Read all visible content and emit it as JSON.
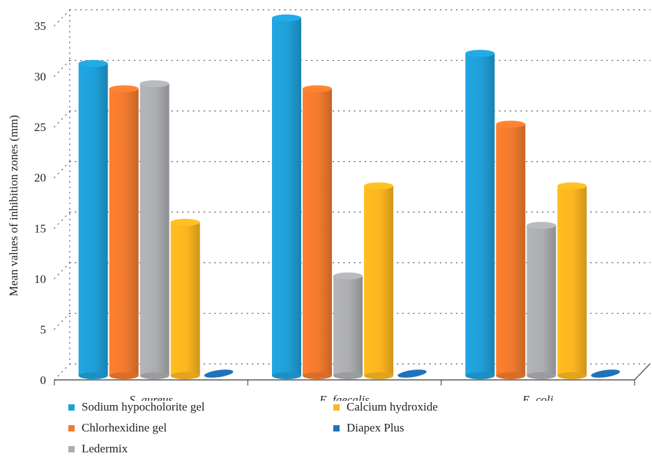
{
  "chart_data": {
    "type": "bar",
    "categories": [
      "S. aureus",
      "E. faecalis",
      "E. coli"
    ],
    "series": [
      {
        "name": "Sodium hypocholorite gel",
        "color": "#1f9fd8",
        "values": [
          31,
          35.5,
          32
        ]
      },
      {
        "name": "Chlorhexidine gel",
        "color": "#f27a2e",
        "values": [
          28.5,
          28.5,
          25
        ]
      },
      {
        "name": "Ledermix",
        "color": "#acadb1",
        "values": [
          29,
          10,
          15
        ]
      },
      {
        "name": "Calcium hydroxide",
        "color": "#fcb51f",
        "values": [
          15.3,
          18.9,
          18.9
        ]
      },
      {
        "name": "Diapex Plus",
        "color": "#2072bb",
        "values": [
          0,
          0,
          0
        ]
      }
    ],
    "ylabel": "Mean values of inhibition zones (mm)",
    "ylim": [
      0,
      35
    ],
    "yticks": [
      "0",
      "5",
      "10",
      "15",
      "20",
      "25",
      "30",
      "35"
    ],
    "grid": true,
    "legend_position": "bottom"
  }
}
